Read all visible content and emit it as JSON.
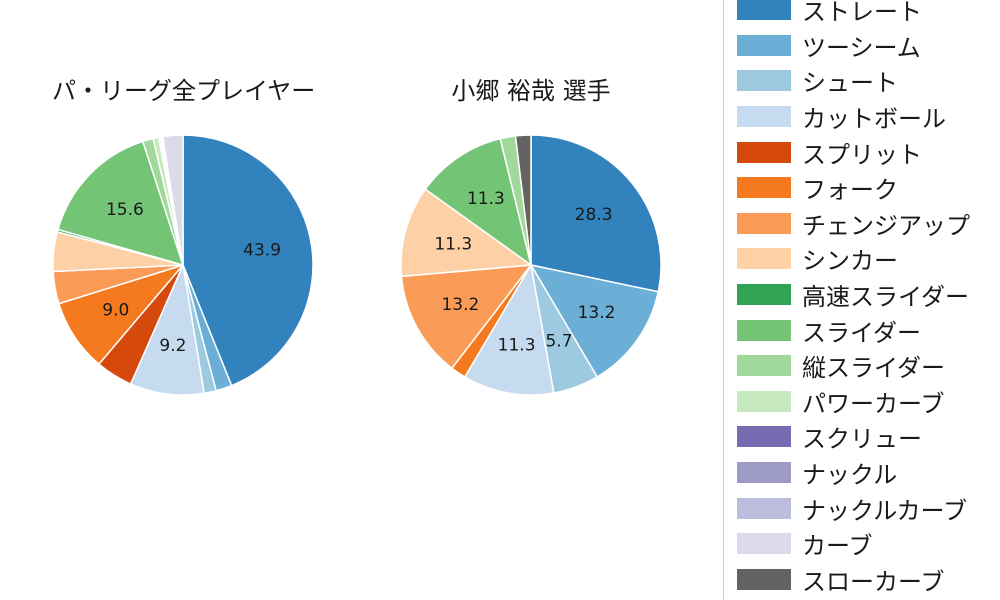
{
  "titles": {
    "left": "パ・リーグ全プレイヤー",
    "right": "小郷 裕哉 選手"
  },
  "chart_data": [
    {
      "type": "pie",
      "title": "パ・リーグ全プレイヤー",
      "categories": [
        "ストレート",
        "ツーシーム",
        "シュート",
        "カットボール",
        "スプリット",
        "フォーク",
        "チェンジアップ",
        "シンカー",
        "高速スライダー",
        "スライダー",
        "縦スライダー",
        "パワーカーブ",
        "スクリュー",
        "ナックル",
        "ナックルカーブ",
        "カーブ",
        "スローカーブ"
      ],
      "values": [
        43.9,
        2.0,
        1.5,
        9.2,
        4.6,
        9.0,
        4.0,
        4.9,
        0.3,
        15.6,
        1.3,
        0.7,
        0.2,
        0.1,
        0.2,
        2.5,
        0.0
      ],
      "visible_labels": [
        43.9,
        9.2,
        9.0,
        15.6
      ],
      "colors": [
        "#3182bd",
        "#6baed6",
        "#9ecae1",
        "#c6dbef",
        "#d5490c",
        "#f4791f",
        "#fa9b57",
        "#fdd0a6",
        "#31a354",
        "#74c476",
        "#a1d99b",
        "#c7e9c0",
        "#756bb1",
        "#9e9ac8",
        "#bcbddc",
        "#dadaeb",
        "#636363"
      ],
      "start_angle": "top",
      "direction": "clockwise",
      "label_threshold_pct": 5,
      "legend_position": "right"
    },
    {
      "type": "pie",
      "title": "小郷 裕哉 選手",
      "categories": [
        "ストレート",
        "ツーシーム",
        "シュート",
        "カットボール",
        "スプリット",
        "フォーク",
        "チェンジアップ",
        "シンカー",
        "高速スライダー",
        "スライダー",
        "縦スライダー",
        "パワーカーブ",
        "スクリュー",
        "ナックル",
        "ナックルカーブ",
        "カーブ",
        "スローカーブ"
      ],
      "values": [
        28.3,
        13.2,
        5.7,
        11.3,
        0,
        1.9,
        13.2,
        11.3,
        0,
        11.3,
        1.9,
        0,
        0,
        0,
        0,
        0,
        1.9
      ],
      "visible_labels": [
        28.3,
        13.2,
        5.7,
        11.3,
        13.2,
        11.3,
        11.3
      ],
      "colors": [
        "#3182bd",
        "#6baed6",
        "#9ecae1",
        "#c6dbef",
        "#d5490c",
        "#f4791f",
        "#fa9b57",
        "#fdd0a6",
        "#31a354",
        "#74c476",
        "#a1d99b",
        "#c7e9c0",
        "#756bb1",
        "#9e9ac8",
        "#bcbddc",
        "#dadaeb",
        "#636363"
      ],
      "start_angle": "top",
      "direction": "clockwise",
      "label_threshold_pct": 5,
      "legend_position": "right"
    }
  ],
  "legend": {
    "items": [
      "ストレート",
      "ツーシーム",
      "シュート",
      "カットボール",
      "スプリット",
      "フォーク",
      "チェンジアップ",
      "シンカー",
      "高速スライダー",
      "スライダー",
      "縦スライダー",
      "パワーカーブ",
      "スクリュー",
      "ナックル",
      "ナックルカーブ",
      "カーブ",
      "スローカーブ"
    ]
  },
  "style_colors": {
    "text": "#1a1a1a",
    "legend_border": "#c9c9c9",
    "slice_edge": "#ffffff"
  }
}
